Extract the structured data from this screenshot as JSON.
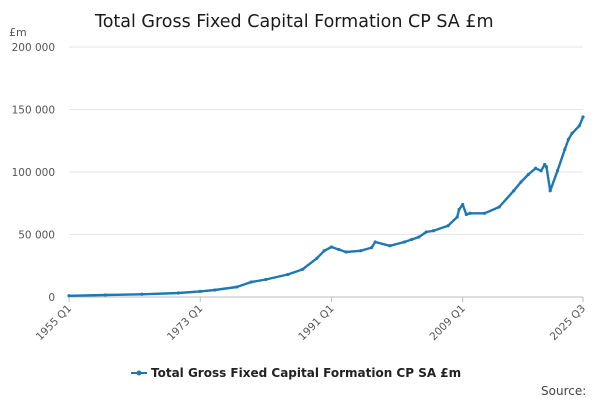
{
  "chart_data": {
    "type": "line",
    "title": "Total Gross Fixed Capital Formation CP SA £m",
    "ylabel": "£m",
    "xlabel": "",
    "ylim": [
      0,
      200000
    ],
    "yticks": [
      0,
      50000,
      100000,
      150000,
      200000
    ],
    "ytick_labels": [
      "0",
      "50 000",
      "100 000",
      "150 000",
      "200 000"
    ],
    "xlim": [
      1955.0,
      2025.5
    ],
    "xticks": [
      1955.0,
      1973.0,
      1991.0,
      2009.0,
      2025.5
    ],
    "xtick_labels": [
      "1955 Q1",
      "1973 Q1",
      "1991 Q1",
      "2009 Q1",
      "2025 Q3"
    ],
    "grid": true,
    "legend_position": "bottom-center",
    "series": [
      {
        "name": "Total Gross Fixed Capital Formation CP SA £m",
        "color": "#1f78b4",
        "x": [
          1955.0,
          1960.0,
          1965.0,
          1970.0,
          1973.0,
          1975.0,
          1978.0,
          1980.0,
          1982.0,
          1985.0,
          1987.0,
          1989.0,
          1990.0,
          1991.0,
          1992.0,
          1993.0,
          1995.0,
          1996.5,
          1997.0,
          1999.0,
          2001.0,
          2002.0,
          2003.0,
          2004.0,
          2005.0,
          2007.0,
          2008.25,
          2008.5,
          2009.0,
          2009.5,
          2010.0,
          2012.0,
          2014.0,
          2016.0,
          2017.0,
          2018.0,
          2019.0,
          2019.75,
          2020.25,
          2020.5,
          2021.0,
          2022.0,
          2023.0,
          2023.5,
          2024.0,
          2025.0,
          2025.5
        ],
        "y": [
          1000,
          1600,
          2200,
          3200,
          4500,
          5600,
          8000,
          12000,
          14000,
          18000,
          22000,
          31000,
          37000,
          40000,
          38000,
          36000,
          37000,
          39500,
          44000,
          41000,
          44000,
          46000,
          48000,
          52000,
          53000,
          57000,
          64000,
          70000,
          74000,
          66000,
          67000,
          67000,
          72000,
          85000,
          92000,
          98000,
          103000,
          101000,
          106000,
          104000,
          85000,
          101000,
          118000,
          126000,
          131000,
          137000,
          144000
        ]
      }
    ]
  },
  "legend": {
    "label": "Total Gross Fixed Capital Formation CP SA £m"
  },
  "source": {
    "label": "Source:"
  }
}
